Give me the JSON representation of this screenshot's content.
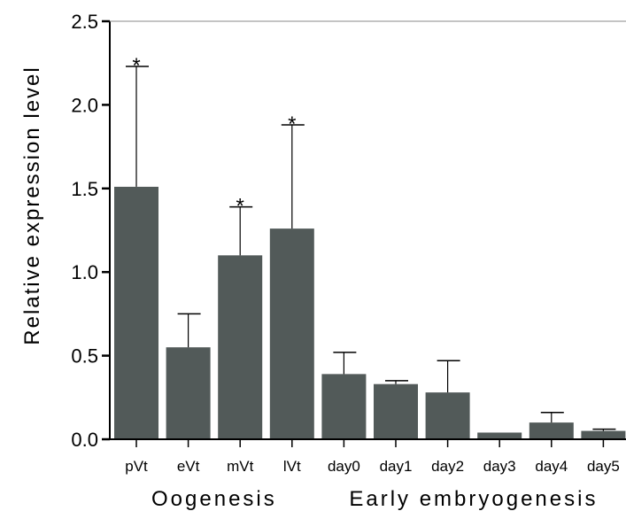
{
  "chart_data": {
    "type": "bar",
    "ylabel": "Relative expression level",
    "ylim": [
      0,
      2.5
    ],
    "yticks": [
      "0.0",
      "0.5",
      "1.0",
      "1.5",
      "2.0",
      "2.5"
    ],
    "ytick_values": [
      0,
      0.5,
      1.0,
      1.5,
      2.0,
      2.5
    ],
    "categories": [
      "pVt",
      "eVt",
      "mVt",
      "lVt",
      "day0",
      "day1",
      "day2",
      "day3",
      "day4",
      "day5"
    ],
    "values": [
      1.51,
      0.55,
      1.1,
      1.26,
      0.39,
      0.33,
      0.28,
      0.04,
      0.1,
      0.05
    ],
    "error_upper": [
      2.23,
      0.75,
      1.39,
      1.88,
      0.52,
      0.35,
      0.47,
      0.04,
      0.16,
      0.06
    ],
    "significance": [
      "*",
      "",
      "*",
      "*",
      "",
      "",
      "",
      "",
      "",
      ""
    ],
    "groups": [
      {
        "label": "Oogenesis",
        "start": 0,
        "end": 3
      },
      {
        "label": "Early embryogenesis",
        "start": 4,
        "end": 9
      }
    ],
    "colors": {
      "bar": "#525a59",
      "axis": "#000000",
      "error": "#000000"
    }
  }
}
